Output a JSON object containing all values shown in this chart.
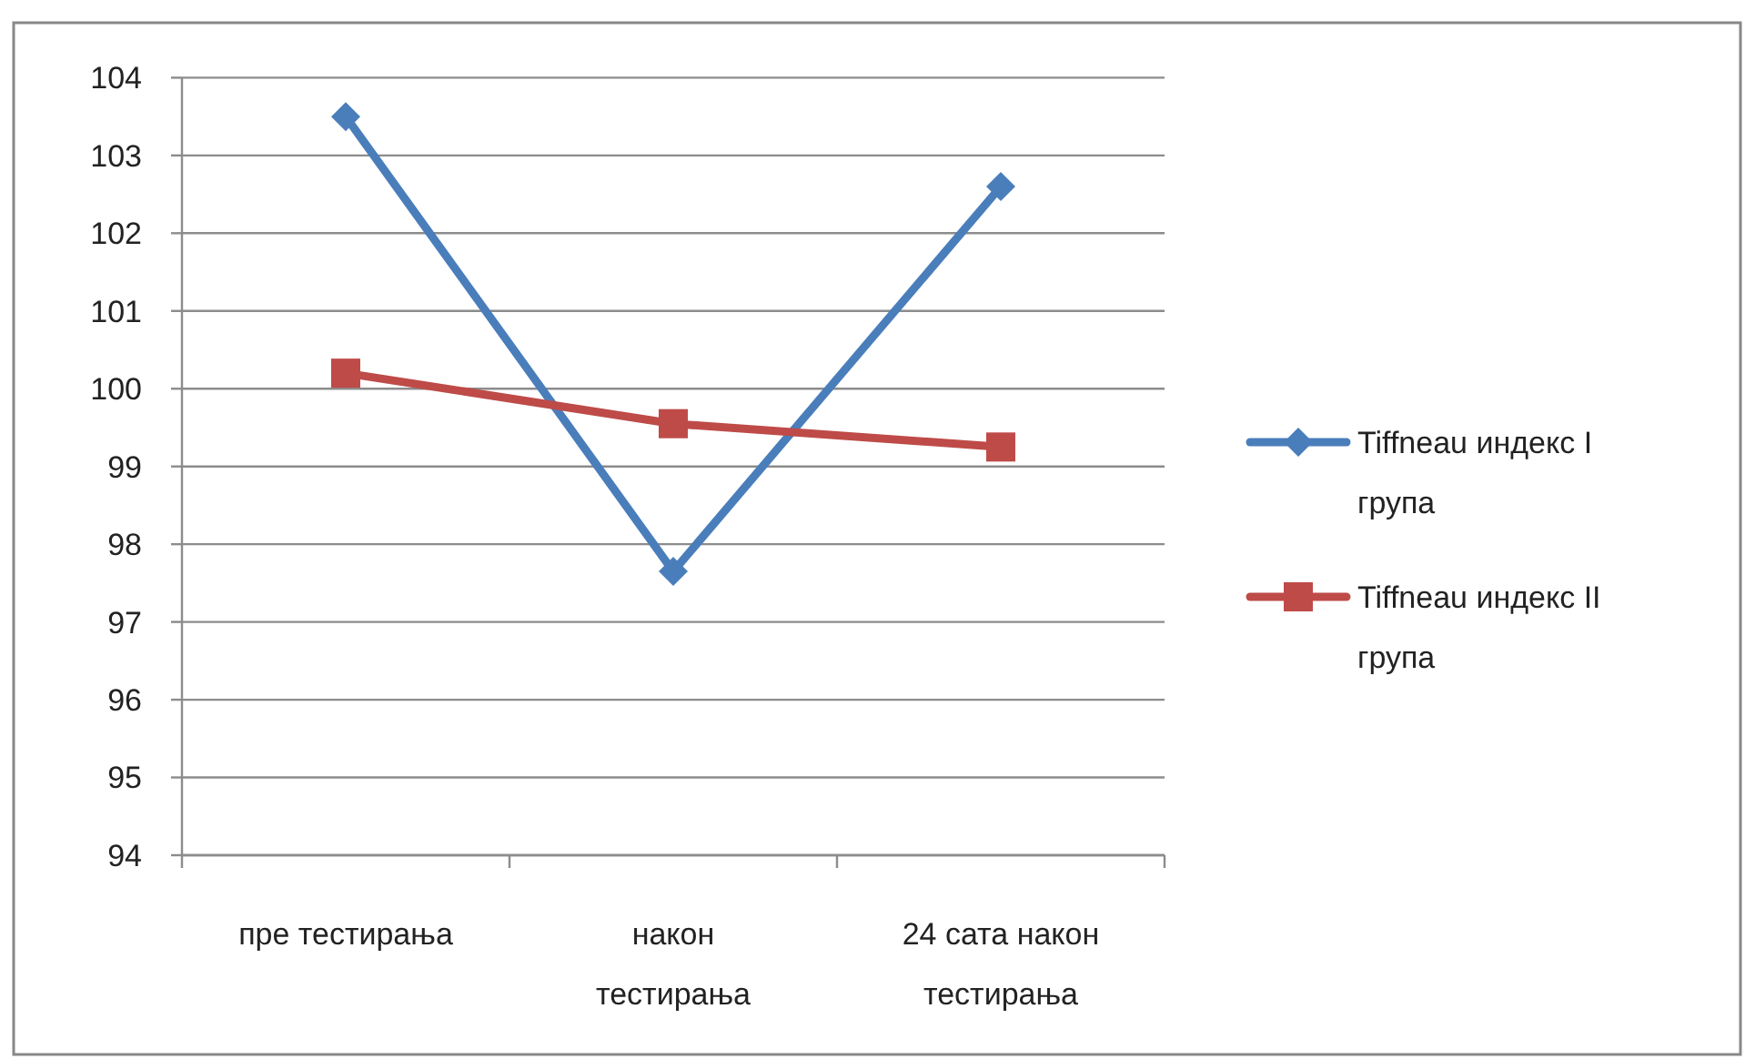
{
  "chart_data": {
    "type": "line",
    "categories": [
      "пре тестирања",
      "након тестирања",
      "24 сата након тестирања"
    ],
    "series": [
      {
        "name": "Tiffneau индекс I група",
        "color": "#4a7ebb",
        "marker": "diamond",
        "values": [
          103.5,
          97.65,
          102.6
        ]
      },
      {
        "name": "Tiffneau индекс II група",
        "color": "#be4b48",
        "marker": "square",
        "values": [
          100.2,
          99.55,
          99.25
        ]
      }
    ],
    "ylim": [
      94,
      104
    ],
    "yticks": [
      94,
      95,
      96,
      97,
      98,
      99,
      100,
      101,
      102,
      103,
      104
    ],
    "grid": "y",
    "legend": "right"
  }
}
